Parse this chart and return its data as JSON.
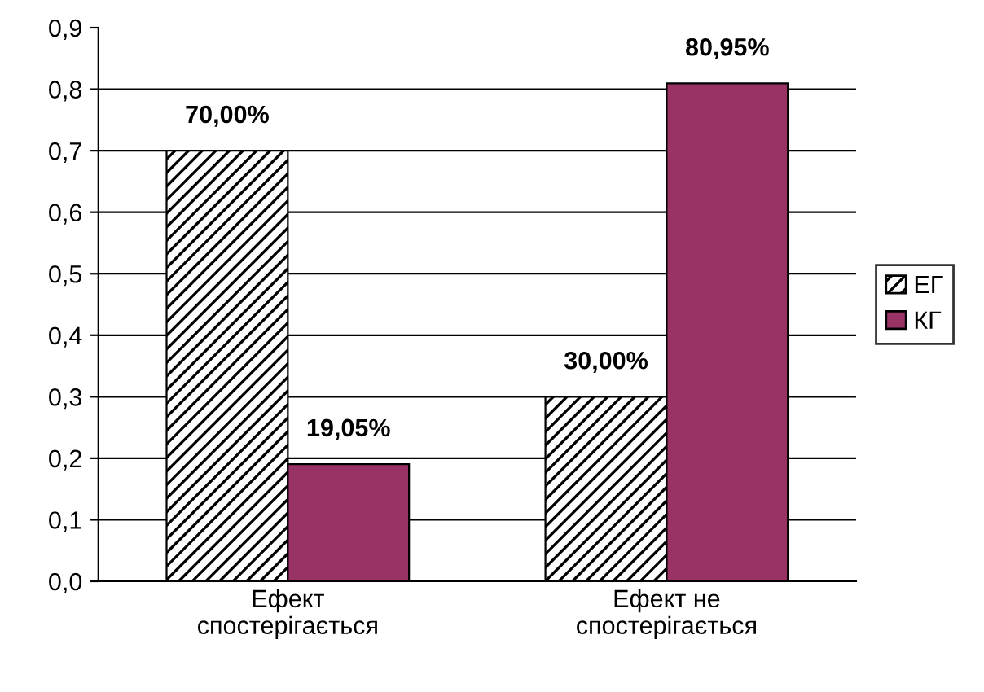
{
  "chart_data": {
    "type": "bar",
    "categories": [
      "Ефект\nспостерігається",
      "Ефект не\nспостерігається"
    ],
    "series": [
      {
        "name": "ЕГ",
        "color": "#000000",
        "values": [
          0.7,
          0.3
        ],
        "value_labels": [
          "70,00%",
          "30,00%"
        ]
      },
      {
        "name": "КГ",
        "color": "#993366",
        "values": [
          0.1905,
          0.8095
        ],
        "value_labels": [
          "19,05%",
          "80,95%"
        ]
      }
    ],
    "ylim": [
      0,
      0.9
    ],
    "yticks": [
      {
        "value": 0,
        "label": "0,0"
      },
      {
        "value": 0.1,
        "label": "0,1"
      },
      {
        "value": 0.2,
        "label": "0,2"
      },
      {
        "value": 0.3,
        "label": "0,3"
      },
      {
        "value": 0.4,
        "label": "0,4"
      },
      {
        "value": 0.5,
        "label": "0,5"
      },
      {
        "value": 0.6,
        "label": "0,6"
      },
      {
        "value": 0.7,
        "label": "0,7"
      },
      {
        "value": 0.8,
        "label": "0,8"
      },
      {
        "value": 0.9,
        "label": "0,9"
      }
    ],
    "grid": "y",
    "legend": "right"
  }
}
